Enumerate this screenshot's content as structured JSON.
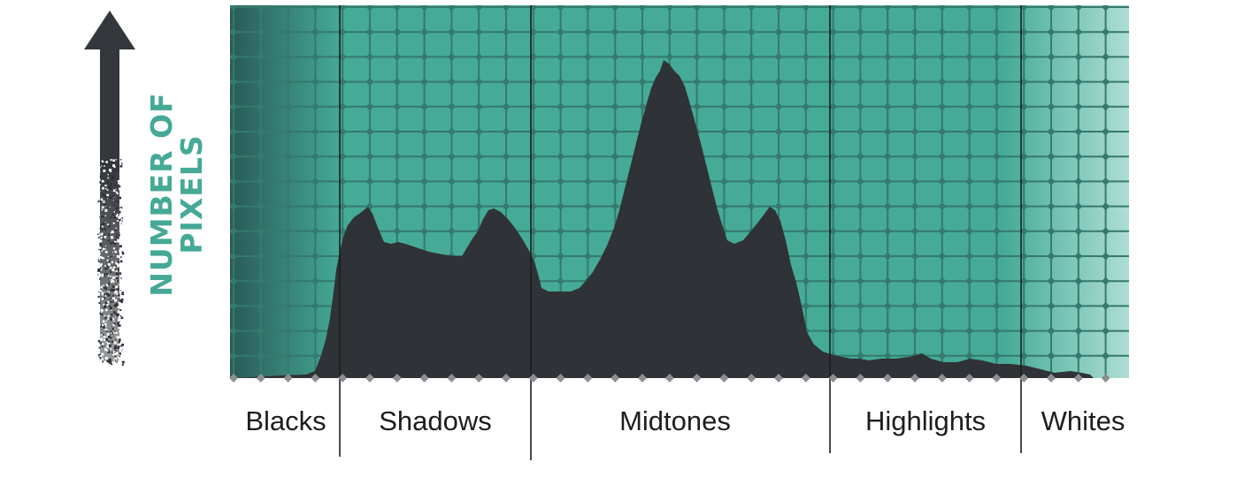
{
  "axis_label": {
    "line1": "NUMBER OF",
    "line2": "PIXELS"
  },
  "zones": [
    {
      "label": "Blacks"
    },
    {
      "label": "Shadows"
    },
    {
      "label": "Midtones"
    },
    {
      "label": "Highlights"
    },
    {
      "label": "Whites"
    }
  ],
  "colors": {
    "teal": "#45ab96",
    "teal_dark": "#2a5a57",
    "teal_light": "#aeded3",
    "grid": "#35796f",
    "histogram": "#2f3236",
    "arrow": "#34373b",
    "axis_text": "#45a996",
    "label_text": "#1c1d1f"
  },
  "icons": {
    "axis_arrow": "up-arrow-icon"
  }
}
